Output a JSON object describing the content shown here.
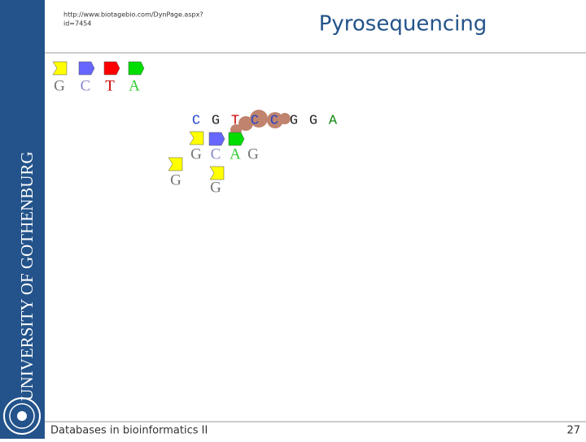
{
  "header": {
    "url_lines": [
      "http://www.biotagebio.com/DynPage.aspx?",
      "id=7454"
    ],
    "title": "Pyrosequencing"
  },
  "sidebar": {
    "text": "UNIVERSITY OF GOTHENBURG"
  },
  "legend": [
    "G",
    "C",
    "T",
    "A"
  ],
  "template": [
    "C",
    "G",
    "T",
    "C",
    "C",
    "G",
    "G",
    "A"
  ],
  "strand": [
    "G",
    "C",
    "A",
    "G"
  ],
  "free": [
    "G",
    "G"
  ],
  "footer": {
    "text": "Databases in bioinformatics II",
    "page": "27"
  }
}
